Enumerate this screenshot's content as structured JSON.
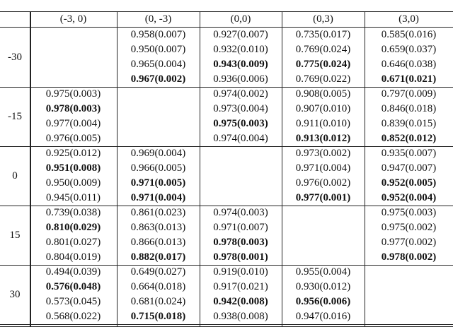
{
  "table": {
    "header": [
      "(-3, 0)",
      "(0, -3)",
      "(0,0)",
      "(0,3)",
      "(3,0)"
    ],
    "rows": [
      {
        "label": "-30",
        "cells": [
          [],
          [
            "0.958(0.007)",
            "0.950(0.007)",
            "0.965(0.004)",
            {
              "text": "0.967(0.002)",
              "bold": true
            }
          ],
          [
            "0.927(0.007)",
            "0.932(0.010)",
            {
              "text": "0.943(0.009)",
              "bold": true
            },
            "0.936(0.006)"
          ],
          [
            "0.735(0.017)",
            "0.769(0.024)",
            {
              "text": "0.775(0.024)",
              "bold": true
            },
            "0.769(0.022)"
          ],
          [
            "0.585(0.016)",
            "0.659(0.037)",
            "0.646(0.038)",
            {
              "text": "0.671(0.021)",
              "bold": true
            }
          ]
        ]
      },
      {
        "label": "-15",
        "cells": [
          [
            "0.975(0.003)",
            {
              "text": "0.978(0.003)",
              "bold": true
            },
            "0.977(0.004)",
            "0.976(0.005)"
          ],
          [],
          [
            "0.974(0.002)",
            "0.973(0.004)",
            {
              "text": "0.975(0.003)",
              "bold": true
            },
            "0.974(0.004)"
          ],
          [
            "0.908(0.005)",
            "0.907(0.010)",
            "0.911(0.010)",
            {
              "text": "0.913(0.012)",
              "bold": true
            }
          ],
          [
            "0.797(0.009)",
            "0.846(0.018)",
            "0.839(0.015)",
            {
              "text": "0.852(0.012)",
              "bold": true
            }
          ]
        ]
      },
      {
        "label": "0",
        "cells": [
          [
            "0.925(0.012)",
            {
              "text": "0.951(0.008)",
              "bold": true
            },
            "0.950(0.009)",
            "0.945(0.011)"
          ],
          [
            "0.969(0.004)",
            "0.966(0.005)",
            {
              "text": "0.971(0.005)",
              "bold": true
            },
            {
              "text": "0.971(0.004)",
              "bold": true
            }
          ],
          [],
          [
            "0.973(0.002)",
            "0.971(0.004)",
            "0.976(0.002)",
            {
              "text": "0.977(0.001)",
              "bold": true
            }
          ],
          [
            "0.935(0.007)",
            "0.947(0.007)",
            {
              "text": "0.952(0.005)",
              "bold": true
            },
            {
              "text": "0.952(0.004)",
              "bold": true
            }
          ]
        ]
      },
      {
        "label": "15",
        "cells": [
          [
            "0.739(0.038)",
            {
              "text": "0.810(0.029)",
              "bold": true
            },
            "0.801(0.027)",
            "0.804(0.019)"
          ],
          [
            "0.861(0.023)",
            "0.863(0.013)",
            "0.866(0.013)",
            {
              "text": "0.882(0.017)",
              "bold": true
            }
          ],
          [
            "0.974(0.003)",
            "0.971(0.007)",
            {
              "text": "0.978(0.003)",
              "bold": true
            },
            {
              "text": "0.978(0.001)",
              "bold": true
            }
          ],
          [],
          [
            "0.975(0.003)",
            "0.975(0.002)",
            "0.977(0.002)",
            {
              "text": "0.978(0.002)",
              "bold": true
            }
          ]
        ]
      },
      {
        "label": "30",
        "cells": [
          [
            "0.494(0.039)",
            {
              "text": "0.576(0.048)",
              "bold": true
            },
            "0.573(0.045)",
            "0.568(0.022)"
          ],
          [
            "0.649(0.027)",
            "0.664(0.018)",
            "0.681(0.024)",
            {
              "text": "0.715(0.018)",
              "bold": true
            }
          ],
          [
            "0.919(0.010)",
            "0.917(0.021)",
            {
              "text": "0.942(0.008)",
              "bold": true
            },
            "0.938(0.008)"
          ],
          [
            "0.955(0.004)",
            "0.930(0.012)",
            {
              "text": "0.956(0.006)",
              "bold": true
            },
            "0.947(0.016)"
          ],
          []
        ]
      }
    ]
  }
}
